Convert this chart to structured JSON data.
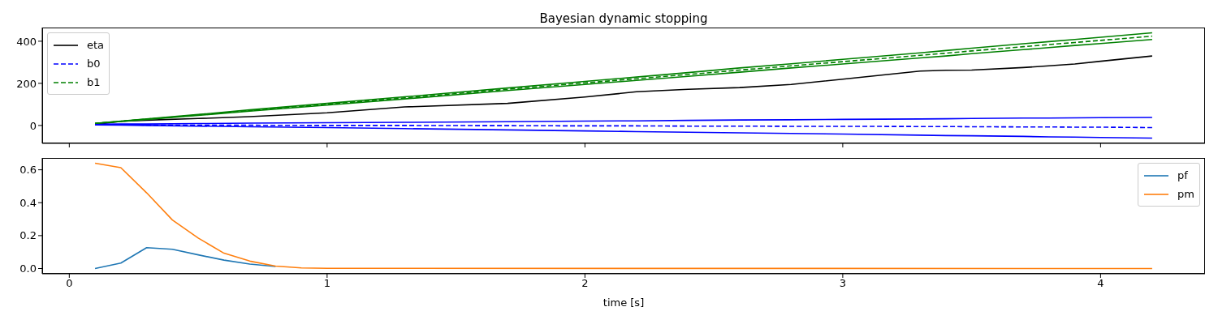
{
  "chart_data": [
    {
      "type": "line",
      "title": "Bayesian dynamic stopping",
      "x": [
        0.1,
        0.2,
        0.3,
        0.5,
        0.7,
        1.0,
        1.3,
        1.7,
        2.0,
        2.2,
        2.4,
        2.6,
        2.8,
        3.0,
        3.3,
        3.4,
        3.5,
        3.7,
        3.8,
        3.9,
        4.0,
        4.2
      ],
      "series": [
        {
          "name": "eta",
          "color": "#000000",
          "line_style": "solid",
          "values": [
            5,
            20,
            25,
            33,
            42,
            60,
            88,
            105,
            135,
            160,
            172,
            180,
            195,
            220,
            258,
            262,
            263,
            275,
            283,
            292,
            305,
            330
          ]
        },
        {
          "name": "b0",
          "color": "#0000ff",
          "line_style": "dashed",
          "values": [
            5,
            3,
            2,
            1,
            1,
            0,
            0,
            -1,
            -2,
            -2,
            -3,
            -3,
            -4,
            -4,
            -5,
            -5,
            -6,
            -7,
            -7,
            -8,
            -8,
            -10
          ]
        },
        {
          "name": "b1",
          "color": "#008000",
          "line_style": "dashed",
          "values": [
            10,
            20,
            30,
            50,
            71,
            101,
            131,
            172,
            202,
            222,
            242,
            263,
            283,
            303,
            333,
            343,
            354,
            374,
            384,
            394,
            404,
            424
          ]
        },
        {
          "color": "#0000ff",
          "line_style": "solid",
          "values": [
            6,
            7,
            7,
            9,
            11,
            13,
            15,
            18,
            21,
            22,
            24,
            26,
            27,
            29,
            31,
            32,
            33,
            35,
            35,
            36,
            37,
            38
          ]
        },
        {
          "color": "#0000ff",
          "line_style": "solid",
          "values": [
            3,
            2,
            0,
            -3,
            -6,
            -10,
            -15,
            -21,
            -26,
            -29,
            -32,
            -35,
            -38,
            -41,
            -46,
            -48,
            -49,
            -52,
            -54,
            -55,
            -57,
            -60
          ]
        },
        {
          "color": "#008000",
          "line_style": "solid",
          "values": [
            10,
            21,
            31,
            52,
            74,
            105,
            136,
            178,
            209,
            230,
            251,
            273,
            293,
            314,
            345,
            356,
            367,
            388,
            398,
            408,
            419,
            440
          ]
        },
        {
          "color": "#008000",
          "line_style": "solid",
          "values": [
            10,
            19,
            29,
            48,
            68,
            97,
            126,
            166,
            195,
            214,
            233,
            253,
            273,
            292,
            321,
            330,
            341,
            360,
            370,
            380,
            389,
            408
          ]
        }
      ],
      "xlim": [
        -0.105,
        4.405
      ],
      "xticks": [
        0,
        1,
        2,
        3,
        4
      ],
      "ylim": [
        -85,
        465
      ],
      "yticks": [
        0,
        200,
        400
      ],
      "tick_labels": "y",
      "legend": "top left",
      "grid": false,
      "marker": "none"
    },
    {
      "type": "line",
      "x": [
        0.1,
        0.2,
        0.3,
        0.4,
        0.5,
        0.6,
        0.7,
        0.8,
        0.9,
        1.0,
        4.2
      ],
      "xlabel": "time [s]",
      "series": [
        {
          "name": "pf",
          "color": "#1f77b4",
          "values": [
            0,
            0.033,
            0.127,
            0.117,
            0.083,
            0.051,
            0.027,
            0.012,
            null,
            null,
            null
          ]
        },
        {
          "name": "pm",
          "color": "#ff7f0e",
          "values": [
            0.64,
            0.613,
            0.46,
            0.295,
            0.185,
            0.093,
            0.045,
            0.015,
            0.004,
            0.001,
            0
          ]
        }
      ],
      "xlim": [
        -0.105,
        4.405
      ],
      "xticks": [
        0,
        1,
        2,
        3,
        4
      ],
      "ylim": [
        -0.032,
        0.672
      ],
      "yticks": [
        {
          "value": 0,
          "label": "0.0"
        },
        {
          "value": 0.2,
          "label": "0.2"
        },
        {
          "value": 0.4,
          "label": "0.4"
        },
        {
          "value": 0.6,
          "label": "0.6"
        }
      ],
      "legend": "top right",
      "grid": false,
      "marker": "none"
    }
  ]
}
